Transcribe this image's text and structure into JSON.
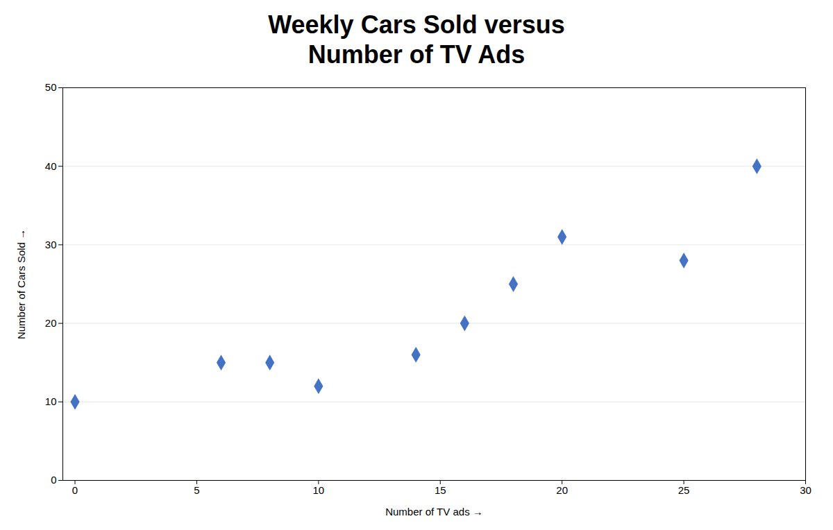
{
  "chart_data": {
    "type": "scatter",
    "title": "Weekly Cars Sold versus\nNumber of TV Ads",
    "xlabel": "Number of TV ads",
    "ylabel": "Number of Cars Sold",
    "x": [
      0,
      6,
      8,
      10,
      14,
      16,
      18,
      20,
      25,
      28
    ],
    "y": [
      10,
      15,
      15,
      12,
      16,
      20,
      25,
      31,
      28,
      40
    ],
    "color": "#4472C4",
    "marker": "diamond",
    "xlim": [
      -0.5,
      30
    ],
    "ylim": [
      0,
      50
    ],
    "xticks": [
      0,
      5,
      10,
      15,
      20,
      25,
      30
    ],
    "yticks": [
      0,
      10,
      20,
      30,
      40,
      50
    ],
    "grid": "y"
  }
}
